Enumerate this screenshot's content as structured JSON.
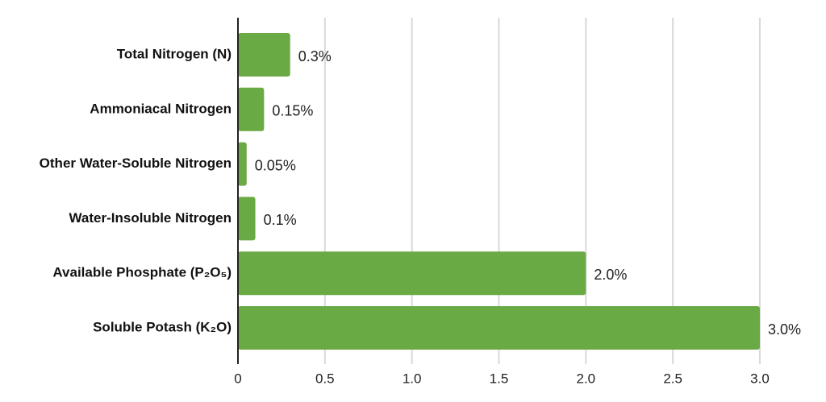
{
  "chart_data": {
    "type": "bar",
    "orientation": "horizontal",
    "categories": [
      "Total Nitrogen (N)",
      "Ammoniacal Nitrogen",
      "Other Water-Soluble Nitrogen",
      "Water-Insoluble Nitrogen",
      "Available Phosphate (P₂O₅)",
      "Soluble Potash (K₂O)"
    ],
    "values": [
      0.3,
      0.15,
      0.05,
      0.1,
      2.0,
      3.0
    ],
    "value_labels": [
      "0.3%",
      "0.15%",
      "0.05%",
      "0.1%",
      "2.0%",
      "3.0%"
    ],
    "xticks": [
      "0",
      "0.5",
      "1.0",
      "1.5",
      "2.0",
      "2.5",
      "3.0"
    ],
    "xlim": [
      0,
      3.0
    ],
    "grid": true,
    "bar_color": "#6aaa45",
    "title": "",
    "xlabel": "",
    "ylabel": ""
  }
}
